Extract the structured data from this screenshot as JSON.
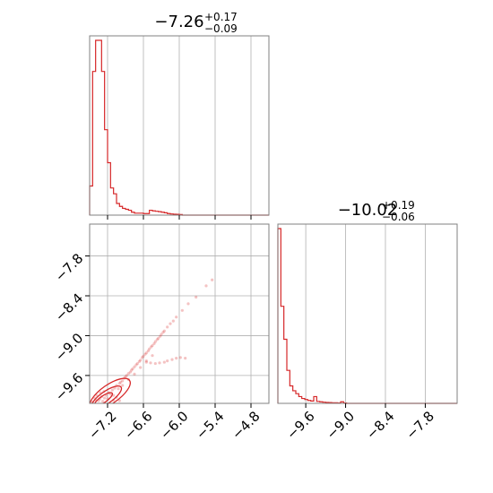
{
  "figure": {
    "param1_title": {
      "median": "−7.26",
      "plus": "+0.17",
      "minus": "−0.09"
    },
    "param2_title": {
      "median": "−10.02",
      "plus": "+0.19",
      "minus": "−0.06"
    }
  },
  "chart_data": [
    {
      "type": "histogram",
      "panel": "top-left",
      "title": "−7.26 (+0.17 / −0.09)",
      "xlim": [
        -7.5,
        -4.5
      ],
      "xticks": [
        -7.2,
        -6.6,
        -6.0,
        -5.4,
        -4.8
      ],
      "grid": true,
      "color": "#d62728",
      "bin_edges": [
        -7.5,
        -7.45,
        -7.4,
        -7.35,
        -7.3,
        -7.25,
        -7.2,
        -7.15,
        -7.1,
        -7.05,
        -7.0,
        -6.95,
        -6.9,
        -6.85,
        -6.8,
        -6.75,
        -6.7,
        -6.65,
        -6.6,
        -6.55,
        -6.5,
        -6.45,
        -6.4,
        -6.35,
        -6.3,
        -6.25,
        -6.2,
        -6.15,
        -6.1,
        -6.05,
        -6.0,
        -5.95,
        -5.9
      ],
      "counts": [
        0.15,
        0.74,
        0.9,
        0.9,
        0.74,
        0.44,
        0.27,
        0.14,
        0.11,
        0.06,
        0.045,
        0.035,
        0.03,
        0.025,
        0.015,
        0.01,
        0.01,
        0.01,
        0.008,
        0.008,
        0.025,
        0.022,
        0.02,
        0.018,
        0.015,
        0.012,
        0.008,
        0.006,
        0.005,
        0.004,
        0.003,
        0.0
      ]
    },
    {
      "type": "scatter",
      "panel": "bottom-left",
      "xlim": [
        -7.5,
        -4.5
      ],
      "ylim": [
        -10.02,
        -7.32
      ],
      "xticks": [
        -7.2,
        -6.6,
        -6.0,
        -5.4,
        -4.8
      ],
      "yticks": [
        -7.8,
        -8.4,
        -9.0,
        -9.6
      ],
      "grid": true,
      "color": "#d62728",
      "contours": [
        {
          "cx": -7.27,
          "cy": -9.96,
          "rx": 0.18,
          "ry": 0.05
        },
        {
          "cx": -7.22,
          "cy": -9.93,
          "rx": 0.3,
          "ry": 0.09
        },
        {
          "cx": -7.16,
          "cy": -9.88,
          "rx": 0.4,
          "ry": 0.14
        }
      ],
      "points": [
        [
          -7.45,
          -10.0
        ],
        [
          -7.4,
          -9.97
        ],
        [
          -7.35,
          -9.98
        ],
        [
          -7.33,
          -9.95
        ],
        [
          -7.3,
          -9.92
        ],
        [
          -7.28,
          -9.99
        ],
        [
          -7.25,
          -9.94
        ],
        [
          -7.22,
          -9.9
        ],
        [
          -7.2,
          -9.95
        ],
        [
          -7.18,
          -9.86
        ],
        [
          -7.15,
          -9.88
        ],
        [
          -7.12,
          -9.82
        ],
        [
          -7.1,
          -9.9
        ],
        [
          -7.08,
          -9.79
        ],
        [
          -7.05,
          -9.75
        ],
        [
          -7.02,
          -9.8
        ],
        [
          -7.0,
          -9.72
        ],
        [
          -6.98,
          -9.7
        ],
        [
          -6.95,
          -9.68
        ],
        [
          -6.92,
          -9.64
        ],
        [
          -6.9,
          -9.62
        ],
        [
          -6.88,
          -9.6
        ],
        [
          -6.85,
          -9.57
        ],
        [
          -6.82,
          -9.55
        ],
        [
          -6.8,
          -9.52
        ],
        [
          -6.78,
          -9.5
        ],
        [
          -6.75,
          -9.47
        ],
        [
          -6.72,
          -9.44
        ],
        [
          -6.7,
          -9.42
        ],
        [
          -6.67,
          -9.39
        ],
        [
          -6.65,
          -9.37
        ],
        [
          -6.62,
          -9.33
        ],
        [
          -6.6,
          -9.31
        ],
        [
          -6.57,
          -9.28
        ],
        [
          -6.55,
          -9.26
        ],
        [
          -6.52,
          -9.23
        ],
        [
          -6.5,
          -9.2
        ],
        [
          -6.47,
          -9.17
        ],
        [
          -6.45,
          -9.15
        ],
        [
          -6.42,
          -9.12
        ],
        [
          -6.4,
          -9.09
        ],
        [
          -6.37,
          -9.06
        ],
        [
          -6.35,
          -9.04
        ],
        [
          -6.32,
          -9.01
        ],
        [
          -6.3,
          -8.98
        ],
        [
          -6.27,
          -8.95
        ],
        [
          -6.25,
          -8.93
        ],
        [
          -6.2,
          -8.87
        ],
        [
          -6.15,
          -8.82
        ],
        [
          -6.1,
          -8.78
        ],
        [
          -6.05,
          -8.72
        ],
        [
          -5.95,
          -8.62
        ],
        [
          -5.85,
          -8.52
        ],
        [
          -5.72,
          -8.42
        ],
        [
          -5.55,
          -8.25
        ],
        [
          -5.45,
          -8.16
        ],
        [
          -6.95,
          -9.75
        ],
        [
          -6.85,
          -9.66
        ],
        [
          -6.75,
          -9.58
        ],
        [
          -6.65,
          -9.48
        ],
        [
          -6.55,
          -9.38
        ],
        [
          -6.45,
          -9.3
        ],
        [
          -6.55,
          -9.4
        ],
        [
          -6.48,
          -9.41
        ],
        [
          -6.4,
          -9.42
        ],
        [
          -6.33,
          -9.41
        ],
        [
          -6.25,
          -9.4
        ],
        [
          -6.2,
          -9.38
        ],
        [
          -6.12,
          -9.36
        ],
        [
          -6.05,
          -9.34
        ],
        [
          -5.98,
          -9.33
        ],
        [
          -5.9,
          -9.34
        ],
        [
          -7.38,
          -9.9
        ],
        [
          -7.32,
          -9.86
        ],
        [
          -7.26,
          -9.84
        ],
        [
          -7.42,
          -9.94
        ],
        [
          -7.1,
          -9.97
        ],
        [
          -7.0,
          -9.98
        ],
        [
          -7.05,
          -9.93
        ]
      ]
    },
    {
      "type": "histogram",
      "panel": "bottom-right",
      "title": "−10.02 (+0.19 / −0.06)",
      "xlim": [
        -10.02,
        -7.32
      ],
      "xticks": [
        -9.6,
        -9.0,
        -8.4,
        -7.8
      ],
      "grid": true,
      "color": "#d62728",
      "bin_edges": [
        -10.02,
        -9.975,
        -9.93,
        -9.885,
        -9.84,
        -9.795,
        -9.75,
        -9.705,
        -9.66,
        -9.615,
        -9.57,
        -9.525,
        -9.48,
        -9.435,
        -9.39,
        -9.345,
        -9.3,
        -9.255,
        -9.21,
        -9.165,
        -9.12,
        -9.075,
        -9.03,
        -8.985,
        -8.94
      ],
      "counts": [
        0.9,
        0.5,
        0.33,
        0.17,
        0.09,
        0.065,
        0.05,
        0.035,
        0.025,
        0.02,
        0.015,
        0.012,
        0.035,
        0.01,
        0.008,
        0.006,
        0.005,
        0.004,
        0.003,
        0.003,
        0.002,
        0.008,
        0.002,
        0.0
      ]
    }
  ]
}
